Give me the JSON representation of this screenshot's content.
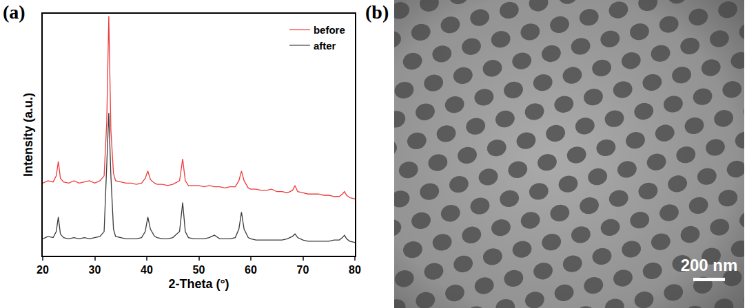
{
  "chart_data": {
    "type": "line",
    "x_label": "2-Theta (°)",
    "y_label": "Intensity (a.u.)",
    "annotations": [
      "(a)"
    ],
    "x": [
      20,
      21,
      22,
      22.6,
      23,
      23.4,
      24,
      25,
      26,
      27,
      28,
      29,
      30,
      31,
      31.8,
      32.3,
      32.7,
      33.1,
      33.6,
      34,
      35,
      36,
      37,
      38,
      39,
      39.7,
      40.2,
      40.7,
      41.5,
      42,
      43,
      44,
      45,
      46.3,
      46.9,
      47.4,
      48,
      49,
      50,
      51,
      52,
      53,
      54,
      55,
      56,
      57,
      57.7,
      58.2,
      58.7,
      59.5,
      60,
      61,
      62,
      63,
      64,
      65,
      66,
      67,
      68,
      68.5,
      69,
      70,
      71,
      72,
      73,
      74,
      75,
      76,
      77,
      77.6,
      78,
      78.4,
      79,
      80
    ],
    "series": [
      {
        "name": "before",
        "color": "#ee3b3b",
        "values": [
          30,
          31,
          30.5,
          33,
          39,
          32,
          30.5,
          30,
          31,
          30,
          30.5,
          31,
          30,
          31,
          33,
          55,
          99,
          52,
          34,
          31,
          30.5,
          30,
          30,
          29.5,
          30,
          32,
          35,
          31.5,
          30,
          29.5,
          29.5,
          29,
          29.5,
          31,
          40,
          31,
          29,
          29,
          29,
          28.5,
          29,
          28.5,
          28.5,
          28,
          28.5,
          28.5,
          31,
          35,
          31,
          28,
          27.5,
          27.5,
          27,
          27,
          27.5,
          26.5,
          26.5,
          26,
          27,
          29,
          26.5,
          26,
          25.5,
          25.5,
          25.5,
          25,
          25,
          24.5,
          24.5,
          25.5,
          26.5,
          25,
          24,
          23.5
        ]
      },
      {
        "name": "after",
        "color": "#3a3a3a",
        "values": [
          7,
          8,
          7.5,
          10,
          16,
          9,
          7.5,
          7,
          7.5,
          7,
          7.5,
          7,
          7.5,
          8,
          10,
          35,
          59,
          33,
          11,
          8,
          7.5,
          7,
          7,
          7,
          7.5,
          10,
          16,
          11,
          8,
          7.5,
          7,
          7,
          7.5,
          10,
          22,
          10,
          7.5,
          7,
          7,
          7,
          7.5,
          8.5,
          7,
          7,
          7,
          7.5,
          11,
          18,
          11,
          7.5,
          7,
          6.5,
          6.5,
          6.5,
          6.5,
          6.5,
          6.5,
          7,
          8,
          9,
          7.5,
          6.5,
          6,
          6,
          6,
          6,
          6,
          6.5,
          6.5,
          7.5,
          8.5,
          7,
          6,
          5.5
        ]
      }
    ],
    "xlim": [
      20,
      80
    ],
    "xticks": [
      20,
      30,
      40,
      50,
      60,
      70,
      80
    ],
    "ylim": [
      0,
      100
    ],
    "tick_labels": "x",
    "grid": false,
    "legend": "top right"
  },
  "image_panel": {
    "label": "(b)",
    "scale_bar": "200 nm"
  }
}
